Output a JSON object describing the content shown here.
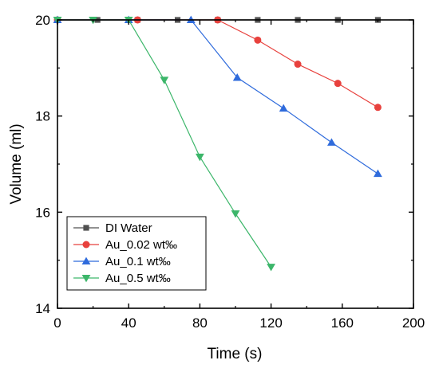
{
  "chart_data": {
    "type": "line",
    "title": "",
    "xlabel": "Time (s)",
    "ylabel": "Volume (ml)",
    "xlim": [
      0,
      200
    ],
    "ylim": [
      14,
      20
    ],
    "xticks": [
      0,
      40,
      80,
      120,
      160,
      200
    ],
    "yticks": [
      14,
      16,
      18,
      20
    ],
    "grid": false,
    "legend_position": "bottom-left",
    "series": [
      {
        "name": "DI Water",
        "marker": "square",
        "color": "#505050",
        "x": [
          0,
          22.5,
          45,
          67.5,
          90,
          112.5,
          135,
          157.5,
          180
        ],
        "y": [
          20,
          20,
          20,
          20,
          20,
          20,
          20,
          20,
          20
        ]
      },
      {
        "name": "Au_0.02 wt‰",
        "marker": "circle",
        "color": "#e8413d",
        "x": [
          0,
          45,
          90,
          112.5,
          135,
          157.5,
          180
        ],
        "y": [
          20,
          20,
          20,
          19.58,
          19.08,
          18.68,
          18.18
        ]
      },
      {
        "name": "Au_0.1 wt‰",
        "marker": "triangle-up",
        "color": "#2f6bdc",
        "x": [
          0,
          40,
          75,
          101,
          127,
          154,
          180
        ],
        "y": [
          20,
          20,
          20,
          18.8,
          18.16,
          17.45,
          16.8
        ]
      },
      {
        "name": "Au_0.5 wt‰",
        "marker": "triangle-down",
        "color": "#3cb66a",
        "x": [
          0,
          20,
          40,
          60,
          80,
          100,
          120
        ],
        "y": [
          20,
          20,
          20,
          18.75,
          17.15,
          15.97,
          14.86
        ]
      }
    ]
  }
}
